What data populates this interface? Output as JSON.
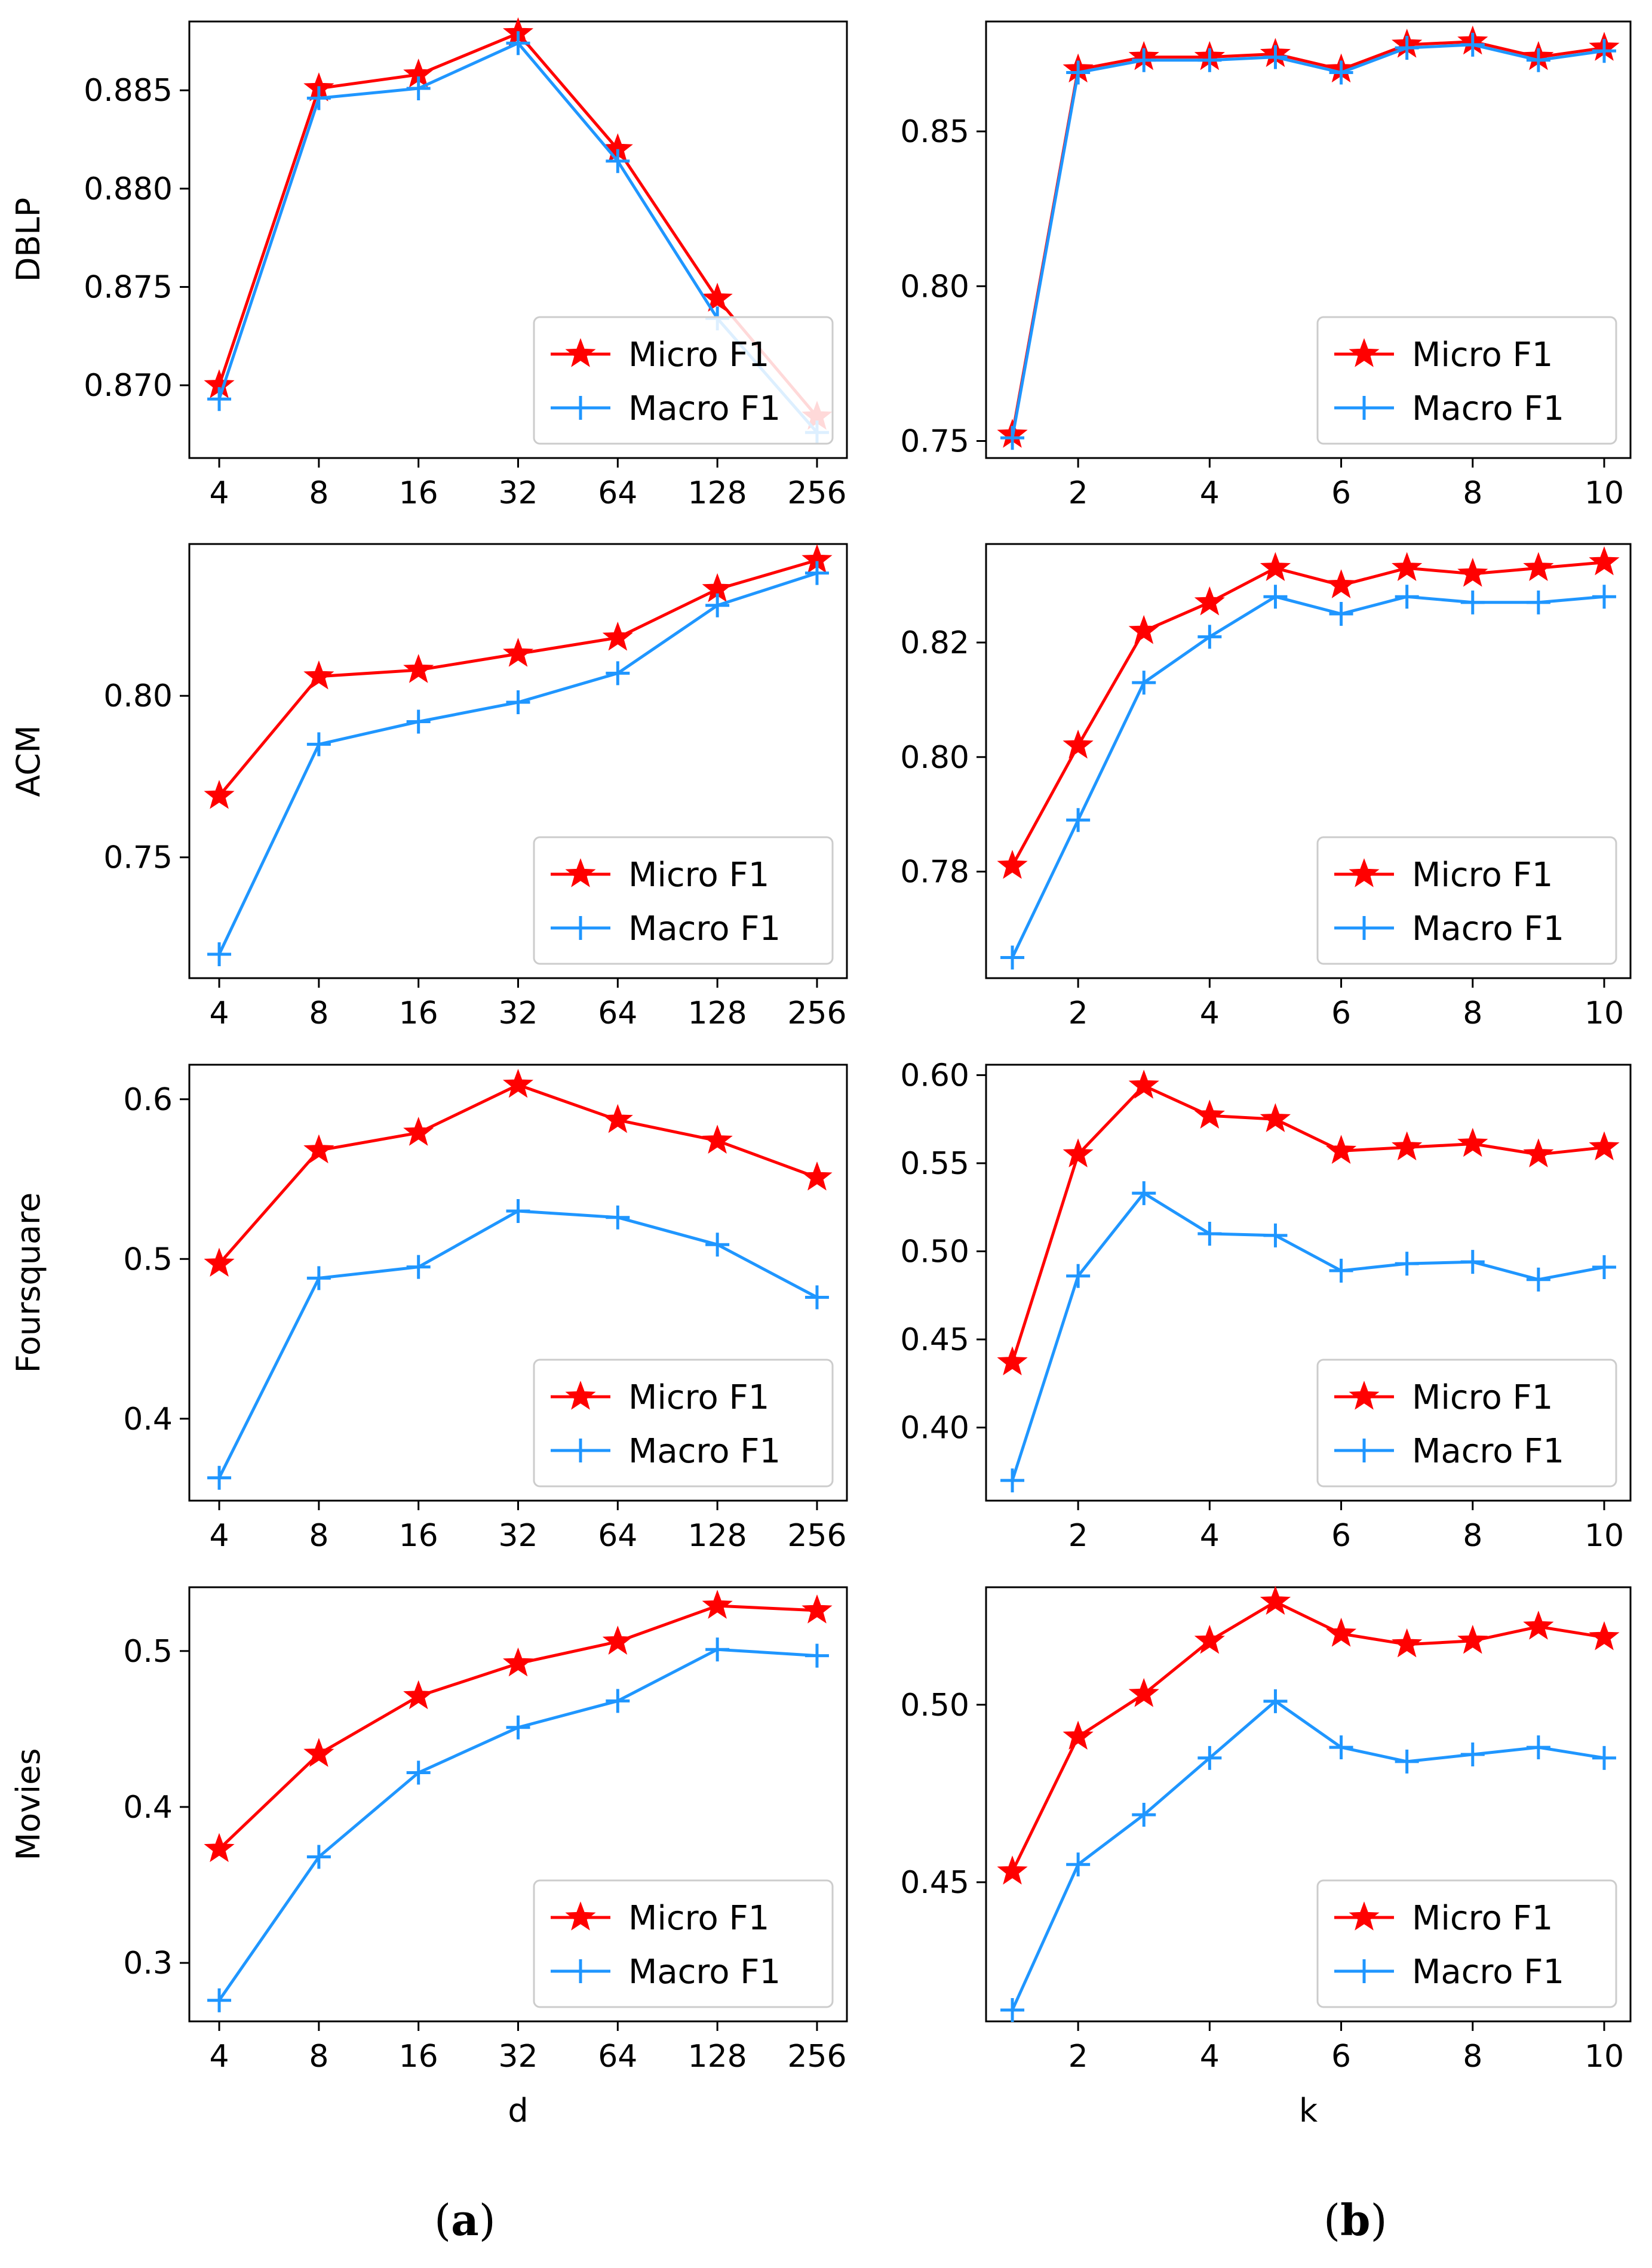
{
  "captions": {
    "a_open": "(",
    "a_letter": "a",
    "a_close": ")",
    "b_open": "(",
    "b_letter": "b",
    "b_close": ")"
  },
  "colors": {
    "micro": "#ff0000",
    "macro": "#1f96ff"
  },
  "chart_data": [
    {
      "type": "line",
      "id": "dblp-d",
      "ylabel": "DBLP",
      "xlabel": "",
      "categories": [
        "4",
        "8",
        "16",
        "32",
        "64",
        "128",
        "256"
      ],
      "ylim": [
        0.8663,
        0.8885
      ],
      "yticks": [
        0.87,
        0.875,
        0.88,
        0.885
      ],
      "ytick_labels": [
        "0.870",
        "0.875",
        "0.880",
        "0.885"
      ],
      "legend": "lower-right",
      "series": [
        {
          "name": "Micro F1",
          "marker": "star",
          "values": [
            0.87,
            0.8851,
            0.8858,
            0.8879,
            0.882,
            0.8744,
            0.8684
          ]
        },
        {
          "name": "Macro F1",
          "marker": "plus",
          "values": [
            0.8693,
            0.8846,
            0.8851,
            0.8874,
            0.8814,
            0.8734,
            0.8676
          ]
        }
      ]
    },
    {
      "type": "line",
      "id": "dblp-k",
      "ylabel": "",
      "xlabel": "",
      "x": [
        1,
        2,
        3,
        4,
        5,
        6,
        7,
        8,
        9,
        10
      ],
      "xlim": [
        0.6,
        10.4
      ],
      "xticks": [
        2,
        4,
        6,
        8,
        10
      ],
      "xtick_labels": [
        "2",
        "4",
        "6",
        "8",
        "10"
      ],
      "ylim": [
        0.7445,
        0.8855
      ],
      "yticks": [
        0.75,
        0.8,
        0.85
      ],
      "ytick_labels": [
        "0.75",
        "0.80",
        "0.85"
      ],
      "legend": "lower-right",
      "series": [
        {
          "name": "Micro F1",
          "marker": "star",
          "values": [
            0.752,
            0.87,
            0.874,
            0.874,
            0.875,
            0.87,
            0.878,
            0.879,
            0.874,
            0.877
          ]
        },
        {
          "name": "Macro F1",
          "marker": "plus",
          "values": [
            0.751,
            0.869,
            0.873,
            0.873,
            0.874,
            0.869,
            0.877,
            0.878,
            0.873,
            0.876
          ]
        }
      ]
    },
    {
      "type": "line",
      "id": "acm-d",
      "ylabel": "ACM",
      "xlabel": "",
      "categories": [
        "4",
        "8",
        "16",
        "32",
        "64",
        "128",
        "256"
      ],
      "ylim": [
        0.7126,
        0.847
      ],
      "yticks": [
        0.75,
        0.8
      ],
      "ytick_labels": [
        "0.75",
        "0.80"
      ],
      "legend": "lower-right",
      "series": [
        {
          "name": "Micro F1",
          "marker": "star",
          "values": [
            0.769,
            0.806,
            0.808,
            0.813,
            0.818,
            0.833,
            0.842
          ]
        },
        {
          "name": "Macro F1",
          "marker": "plus",
          "values": [
            0.72,
            0.785,
            0.792,
            0.798,
            0.807,
            0.828,
            0.838
          ]
        }
      ]
    },
    {
      "type": "line",
      "id": "acm-k",
      "ylabel": "",
      "xlabel": "",
      "x": [
        1,
        2,
        3,
        4,
        5,
        6,
        7,
        8,
        9,
        10
      ],
      "xlim": [
        0.6,
        10.4
      ],
      "xticks": [
        2,
        4,
        6,
        8,
        10
      ],
      "xtick_labels": [
        "2",
        "4",
        "6",
        "8",
        "10"
      ],
      "ylim": [
        0.7614,
        0.8372
      ],
      "yticks": [
        0.78,
        0.8,
        0.82
      ],
      "ytick_labels": [
        "0.78",
        "0.80",
        "0.82"
      ],
      "legend": "lower-right",
      "series": [
        {
          "name": "Micro F1",
          "marker": "star",
          "values": [
            0.781,
            0.802,
            0.822,
            0.827,
            0.833,
            0.83,
            0.833,
            0.832,
            0.833,
            0.834
          ]
        },
        {
          "name": "Macro F1",
          "marker": "plus",
          "values": [
            0.765,
            0.789,
            0.813,
            0.821,
            0.828,
            0.825,
            0.828,
            0.827,
            0.827,
            0.828
          ]
        }
      ]
    },
    {
      "type": "line",
      "id": "foursquare-d",
      "ylabel": "Foursquare",
      "xlabel": "",
      "categories": [
        "4",
        "8",
        "16",
        "32",
        "64",
        "128",
        "256"
      ],
      "ylim": [
        0.3487,
        0.6216
      ],
      "yticks": [
        0.4,
        0.5,
        0.6
      ],
      "ytick_labels": [
        "0.4",
        "0.5",
        "0.6"
      ],
      "legend": "lower-right",
      "series": [
        {
          "name": "Micro F1",
          "marker": "star",
          "values": [
            0.497,
            0.568,
            0.579,
            0.609,
            0.587,
            0.574,
            0.551
          ]
        },
        {
          "name": "Macro F1",
          "marker": "plus",
          "values": [
            0.363,
            0.488,
            0.495,
            0.53,
            0.526,
            0.509,
            0.476
          ]
        }
      ]
    },
    {
      "type": "line",
      "id": "foursquare-k",
      "ylabel": "",
      "xlabel": "",
      "x": [
        1,
        2,
        3,
        4,
        5,
        6,
        7,
        8,
        9,
        10
      ],
      "xlim": [
        0.6,
        10.4
      ],
      "xticks": [
        2,
        4,
        6,
        8,
        10
      ],
      "xtick_labels": [
        "2",
        "4",
        "6",
        "8",
        "10"
      ],
      "ylim": [
        0.3585,
        0.6059
      ],
      "yticks": [
        0.4,
        0.45,
        0.5,
        0.55,
        0.6
      ],
      "ytick_labels": [
        "0.40",
        "0.45",
        "0.50",
        "0.55",
        "0.60"
      ],
      "legend": "lower-right",
      "series": [
        {
          "name": "Micro F1",
          "marker": "star",
          "values": [
            0.437,
            0.555,
            0.594,
            0.577,
            0.575,
            0.557,
            0.559,
            0.561,
            0.555,
            0.559
          ]
        },
        {
          "name": "Macro F1",
          "marker": "plus",
          "values": [
            0.37,
            0.486,
            0.533,
            0.51,
            0.509,
            0.489,
            0.493,
            0.494,
            0.484,
            0.491
          ]
        }
      ]
    },
    {
      "type": "line",
      "id": "movies-d",
      "ylabel": "Movies",
      "xlabel": "d",
      "categories": [
        "4",
        "8",
        "16",
        "32",
        "64",
        "128",
        "256"
      ],
      "ylim": [
        0.2625,
        0.5409
      ],
      "yticks": [
        0.3,
        0.4,
        0.5
      ],
      "ytick_labels": [
        "0.3",
        "0.4",
        "0.5"
      ],
      "legend": "lower-right",
      "series": [
        {
          "name": "Micro F1",
          "marker": "star",
          "values": [
            0.373,
            0.434,
            0.471,
            0.492,
            0.506,
            0.529,
            0.526
          ]
        },
        {
          "name": "Macro F1",
          "marker": "plus",
          "values": [
            0.276,
            0.368,
            0.422,
            0.451,
            0.468,
            0.501,
            0.497
          ]
        }
      ]
    },
    {
      "type": "line",
      "id": "movies-k",
      "ylabel": "",
      "xlabel": "k",
      "x": [
        1,
        2,
        3,
        4,
        5,
        6,
        7,
        8,
        9,
        10
      ],
      "xlim": [
        0.6,
        10.4
      ],
      "xticks": [
        2,
        4,
        6,
        8,
        10
      ],
      "xtick_labels": [
        "2",
        "4",
        "6",
        "8",
        "10"
      ],
      "ylim": [
        0.4108,
        0.5331
      ],
      "yticks": [
        0.45,
        0.5
      ],
      "ytick_labels": [
        "0.45",
        "0.50"
      ],
      "legend": "lower-right",
      "series": [
        {
          "name": "Micro F1",
          "marker": "star",
          "values": [
            0.453,
            0.491,
            0.503,
            0.518,
            0.529,
            0.52,
            0.517,
            0.518,
            0.522,
            0.519
          ]
        },
        {
          "name": "Macro F1",
          "marker": "plus",
          "values": [
            0.414,
            0.455,
            0.469,
            0.485,
            0.501,
            0.488,
            0.484,
            0.486,
            0.488,
            0.485
          ]
        }
      ]
    }
  ]
}
